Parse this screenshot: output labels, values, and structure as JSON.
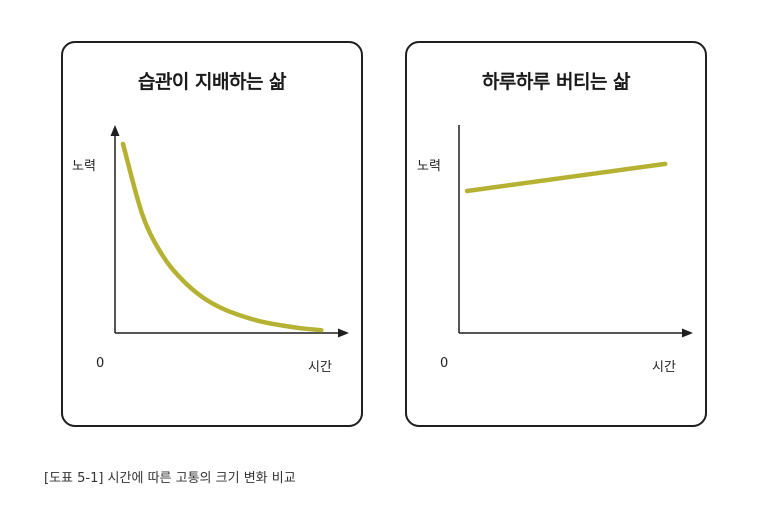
{
  "caption": "[도표 5-1]   시간에 따른 고통의 크기 변화 비교",
  "colors": {
    "curve": "#b5b233",
    "axis": "#1f1f1f",
    "border": "#1f1f1f"
  },
  "chart_data": [
    {
      "type": "line",
      "title": "습관이 지배하는 삶",
      "xlabel": "시간",
      "ylabel": "노력",
      "origin_label": "0",
      "x": [
        0.0,
        0.1,
        0.2,
        0.3,
        0.4,
        0.5,
        0.6,
        0.7,
        0.8,
        0.9,
        1.0
      ],
      "y": [
        1.0,
        0.62,
        0.41,
        0.28,
        0.19,
        0.13,
        0.09,
        0.06,
        0.04,
        0.025,
        0.015
      ],
      "xlim": [
        0,
        1.1
      ],
      "ylim": [
        0,
        1.1
      ]
    },
    {
      "type": "line",
      "title": "하루하루 버티는 삶",
      "xlabel": "시간",
      "ylabel": "노력",
      "origin_label": "0",
      "x": [
        0.0,
        1.0
      ],
      "y": [
        0.84,
        1.0
      ],
      "xlim": [
        0,
        1.1
      ],
      "ylim": [
        0,
        1.23
      ]
    }
  ]
}
